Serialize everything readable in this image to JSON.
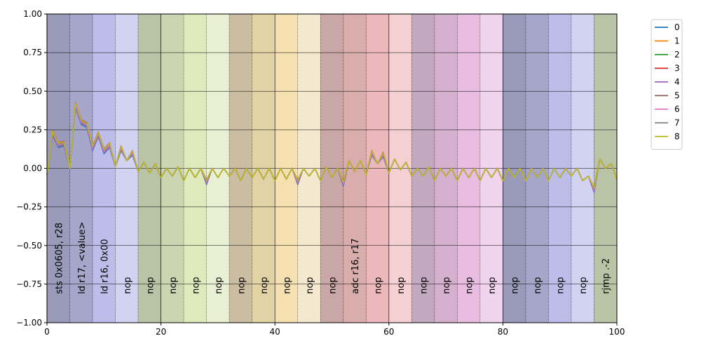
{
  "chart_data": {
    "type": "line",
    "title": "",
    "xlabel": "",
    "ylabel": "",
    "xlim": [
      0,
      100
    ],
    "ylim": [
      -1.0,
      1.0
    ],
    "grid": true,
    "legend_position": "outside-top-right",
    "x_ticks": [
      0,
      20,
      40,
      60,
      80,
      100
    ],
    "y_ticks": [
      -1.0,
      -0.75,
      -0.5,
      -0.25,
      0.0,
      0.25,
      0.5,
      0.75,
      1.0
    ],
    "x_tick_labels": [
      "0",
      "20",
      "40",
      "60",
      "80",
      "100"
    ],
    "y_tick_labels": [
      "−1.00",
      "−0.75",
      "−0.50",
      "−0.25",
      "0.00",
      "0.25",
      "0.50",
      "0.75",
      "1.00"
    ],
    "instruction_regions": [
      {
        "start": 0,
        "end": 4,
        "color": "#1f2266",
        "label": "sts 0x0605, r28"
      },
      {
        "start": 4,
        "end": 8,
        "color": "#39398c",
        "label": "ld r17, <value>"
      },
      {
        "start": 8,
        "end": 12,
        "color": "#6b6ecf",
        "label": "ld r16, 0x00"
      },
      {
        "start": 12,
        "end": 16,
        "color": "#9c9ede",
        "label": "nop"
      },
      {
        "start": 16,
        "end": 20,
        "color": "#637939",
        "label": "nop"
      },
      {
        "start": 20,
        "end": 24,
        "color": "#8ca252",
        "label": "nop"
      },
      {
        "start": 24,
        "end": 28,
        "color": "#b5cf6b",
        "label": "nop"
      },
      {
        "start": 28,
        "end": 32,
        "color": "#cedb9c",
        "label": "nop"
      },
      {
        "start": 32,
        "end": 36,
        "color": "#8c6d31",
        "label": "nop"
      },
      {
        "start": 36,
        "end": 40,
        "color": "#bd9e39",
        "label": "nop"
      },
      {
        "start": 40,
        "end": 44,
        "color": "#e7ba52",
        "label": "nop"
      },
      {
        "start": 44,
        "end": 48,
        "color": "#e7cb94",
        "label": "nop"
      },
      {
        "start": 48,
        "end": 52,
        "color": "#843c39",
        "label": "nop"
      },
      {
        "start": 52,
        "end": 56,
        "color": "#ad494a",
        "label": "adc r16, r17"
      },
      {
        "start": 56,
        "end": 60,
        "color": "#d6616b",
        "label": "nop"
      },
      {
        "start": 60,
        "end": 64,
        "color": "#e7969c",
        "label": "nop"
      },
      {
        "start": 64,
        "end": 68,
        "color": "#7b4173",
        "label": "nop"
      },
      {
        "start": 68,
        "end": 72,
        "color": "#a55194",
        "label": "nop"
      },
      {
        "start": 72,
        "end": 76,
        "color": "#ce6dbd",
        "label": "nop"
      },
      {
        "start": 76,
        "end": 80,
        "color": "#de9ed6",
        "label": "nop"
      },
      {
        "start": 80,
        "end": 84,
        "color": "#1f2266",
        "label": "nop"
      },
      {
        "start": 84,
        "end": 88,
        "color": "#39398c",
        "label": "nop"
      },
      {
        "start": 88,
        "end": 92,
        "color": "#6b6ecf",
        "label": "nop"
      },
      {
        "start": 92,
        "end": 96,
        "color": "#9c9ede",
        "label": "nop"
      },
      {
        "start": 96,
        "end": 100,
        "color": "#637939",
        "label": "rjmp .-2"
      }
    ],
    "x": [
      0,
      1,
      2,
      3,
      4,
      5,
      6,
      7,
      8,
      9,
      10,
      11,
      12,
      13,
      14,
      15,
      16,
      17,
      18,
      19,
      20,
      21,
      22,
      23,
      24,
      25,
      26,
      27,
      28,
      29,
      30,
      31,
      32,
      33,
      34,
      35,
      36,
      37,
      38,
      39,
      40,
      41,
      42,
      43,
      44,
      45,
      46,
      47,
      48,
      49,
      50,
      51,
      52,
      53,
      54,
      55,
      56,
      57,
      58,
      59,
      60,
      61,
      62,
      63,
      64,
      65,
      66,
      67,
      68,
      69,
      70,
      71,
      72,
      73,
      74,
      75,
      76,
      77,
      78,
      79,
      80,
      81,
      82,
      83,
      84,
      85,
      86,
      87,
      88,
      89,
      90,
      91,
      92,
      93,
      94,
      95,
      96,
      97,
      98,
      99,
      100
    ],
    "base_values": [
      -0.04,
      0.23,
      0.15,
      0.16,
      0.0,
      0.41,
      0.3,
      0.28,
      0.13,
      0.22,
      0.11,
      0.15,
      0.01,
      0.13,
      0.05,
      0.1,
      -0.02,
      0.04,
      -0.03,
      0.03,
      -0.06,
      0.0,
      -0.05,
      0.01,
      -0.08,
      0.0,
      -0.06,
      0.0,
      -0.09,
      0.0,
      -0.06,
      0.0,
      -0.05,
      0.0,
      -0.08,
      0.0,
      -0.06,
      0.0,
      -0.07,
      0.0,
      -0.08,
      0.0,
      -0.07,
      0.0,
      -0.09,
      0.0,
      -0.05,
      0.0,
      -0.08,
      0.01,
      -0.06,
      0.0,
      -0.1,
      0.05,
      -0.02,
      0.05,
      -0.04,
      0.1,
      0.03,
      0.09,
      -0.03,
      0.06,
      -0.01,
      0.04,
      -0.05,
      0.0,
      -0.05,
      0.01,
      -0.08,
      0.0,
      -0.05,
      0.0,
      -0.08,
      0.0,
      -0.06,
      0.0,
      -0.08,
      0.0,
      -0.06,
      0.0,
      -0.08,
      0.0,
      -0.06,
      0.0,
      -0.08,
      0.0,
      -0.06,
      0.0,
      -0.08,
      0.0,
      -0.06,
      0.0,
      -0.05,
      0.0,
      -0.08,
      -0.05,
      -0.14,
      0.06,
      0.0,
      0.03,
      -0.07
    ],
    "series": [
      {
        "name": "0",
        "color": "#1f77b4",
        "offset": -0.015
      },
      {
        "name": "1",
        "color": "#ff7f0e",
        "offset": 0.01
      },
      {
        "name": "2",
        "color": "#2ca02c",
        "offset": -0.005
      },
      {
        "name": "3",
        "color": "#d62728",
        "offset": 0.015
      },
      {
        "name": "4",
        "color": "#9467bd",
        "offset": -0.01
      },
      {
        "name": "5",
        "color": "#8c564b",
        "offset": 0.005
      },
      {
        "name": "6",
        "color": "#e377c2",
        "offset": 0.0
      },
      {
        "name": "7",
        "color": "#7f7f7f",
        "offset": 0.008
      },
      {
        "name": "8",
        "color": "#bcbd22",
        "offset": 0.012
      }
    ]
  }
}
